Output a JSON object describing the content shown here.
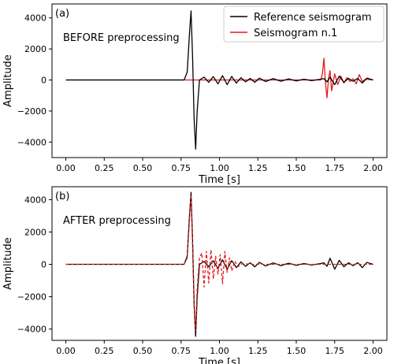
{
  "chart_data": [
    {
      "type": "line",
      "panel_label": "(a)",
      "annotation": "BEFORE preprocessing",
      "xlabel": "Time [s]",
      "ylabel": "Amplitude",
      "xlim": [
        -0.09,
        2.09
      ],
      "ylim": [
        -5000,
        4900
      ],
      "xticks": [
        0.0,
        0.25,
        0.5,
        0.75,
        1.0,
        1.25,
        1.5,
        1.75,
        2.0
      ],
      "xtick_labels": [
        "0.00",
        "0.25",
        "0.50",
        "0.75",
        "1.00",
        "1.25",
        "1.50",
        "1.75",
        "2.00"
      ],
      "yticks": [
        -4000,
        -2000,
        0,
        2000,
        4000
      ],
      "ytick_labels": [
        "−4000",
        "−2000",
        "0",
        "2000",
        "4000"
      ],
      "grid": false,
      "legend": {
        "placement": "top-right",
        "show": true
      },
      "series": [
        {
          "name": "Reference seismogram",
          "color": "#000000",
          "style": "solid",
          "x": [
            0.0,
            0.77,
            0.79,
            0.805,
            0.815,
            0.825,
            0.835,
            0.845,
            0.855,
            0.87,
            0.9,
            0.93,
            0.96,
            0.99,
            1.02,
            1.05,
            1.08,
            1.11,
            1.14,
            1.17,
            1.2,
            1.23,
            1.26,
            1.3,
            1.35,
            1.4,
            1.45,
            1.5,
            1.55,
            1.6,
            1.65,
            1.68,
            1.7,
            1.72,
            1.75,
            1.78,
            1.81,
            1.84,
            1.87,
            1.9,
            1.93,
            1.96,
            2.0
          ],
          "y": [
            0,
            0,
            500,
            3000,
            4450,
            1500,
            -2500,
            -4450,
            -2000,
            0,
            180,
            -150,
            220,
            -250,
            280,
            -300,
            230,
            -200,
            150,
            -120,
            100,
            -150,
            120,
            -100,
            90,
            -80,
            70,
            -60,
            50,
            -40,
            40,
            90,
            -120,
            180,
            -300,
            250,
            -150,
            100,
            -80,
            100,
            -200,
            120,
            0
          ]
        },
        {
          "name": "Seismogram n.1",
          "color": "#e41a1c",
          "style": "solid",
          "x": [
            0.0,
            1.66,
            1.67,
            1.68,
            1.69,
            1.7,
            1.71,
            1.72,
            1.73,
            1.75,
            1.77,
            1.79,
            1.81,
            1.83,
            1.85,
            1.87,
            1.89,
            1.91,
            1.93,
            1.95,
            2.0
          ],
          "y": [
            0,
            0,
            400,
            1400,
            -200,
            -1150,
            100,
            600,
            -700,
            400,
            -300,
            250,
            -200,
            150,
            -100,
            80,
            -250,
            350,
            -100,
            50,
            0
          ]
        }
      ]
    },
    {
      "type": "line",
      "panel_label": "(b)",
      "annotation": "AFTER preprocessing",
      "xlabel": "Time [s]",
      "ylabel": "Amplitude",
      "xlim": [
        -0.09,
        2.09
      ],
      "ylim": [
        -4700,
        4800
      ],
      "xticks": [
        0.0,
        0.25,
        0.5,
        0.75,
        1.0,
        1.25,
        1.5,
        1.75,
        2.0
      ],
      "xtick_labels": [
        "0.00",
        "0.25",
        "0.50",
        "0.75",
        "1.00",
        "1.25",
        "1.50",
        "1.75",
        "2.00"
      ],
      "yticks": [
        -4000,
        -2000,
        0,
        2000,
        4000
      ],
      "ytick_labels": [
        "−4000",
        "−2000",
        "0",
        "2000",
        "4000"
      ],
      "grid": false,
      "legend": {
        "show": false
      },
      "series": [
        {
          "name": "Reference seismogram",
          "color": "#000000",
          "style": "solid",
          "x": [
            0.0,
            0.77,
            0.79,
            0.805,
            0.815,
            0.825,
            0.835,
            0.845,
            0.855,
            0.87,
            0.9,
            0.93,
            0.96,
            0.99,
            1.02,
            1.05,
            1.08,
            1.11,
            1.14,
            1.17,
            1.2,
            1.23,
            1.26,
            1.3,
            1.35,
            1.4,
            1.45,
            1.5,
            1.55,
            1.6,
            1.65,
            1.68,
            1.7,
            1.72,
            1.75,
            1.78,
            1.81,
            1.84,
            1.87,
            1.9,
            1.93,
            1.96,
            2.0
          ],
          "y": [
            0,
            0,
            500,
            3000,
            4450,
            1500,
            -2500,
            -4450,
            -2000,
            0,
            180,
            -150,
            220,
            -250,
            280,
            -300,
            230,
            -200,
            150,
            -120,
            100,
            -150,
            120,
            -100,
            90,
            -80,
            70,
            -60,
            50,
            -40,
            40,
            90,
            -120,
            380,
            -300,
            250,
            -150,
            100,
            -80,
            100,
            -200,
            120,
            0
          ]
        },
        {
          "name": "Seismogram n.1",
          "color": "#e41a1c",
          "style": "dashed",
          "x": [
            0.0,
            0.77,
            0.79,
            0.805,
            0.815,
            0.825,
            0.835,
            0.845,
            0.855,
            0.87,
            0.885,
            0.9,
            0.915,
            0.93,
            0.945,
            0.96,
            0.975,
            0.99,
            1.005,
            1.02,
            1.035,
            1.05,
            1.065,
            1.08,
            1.1,
            1.12,
            1.15,
            1.2,
            2.0
          ],
          "y": [
            0,
            0,
            400,
            2800,
            4300,
            1200,
            -2400,
            -4100,
            -1500,
            400,
            700,
            -1400,
            800,
            -1150,
            900,
            -900,
            500,
            -600,
            600,
            -1200,
            800,
            -500,
            400,
            -400,
            200,
            -150,
            50,
            0,
            0
          ]
        }
      ]
    }
  ]
}
